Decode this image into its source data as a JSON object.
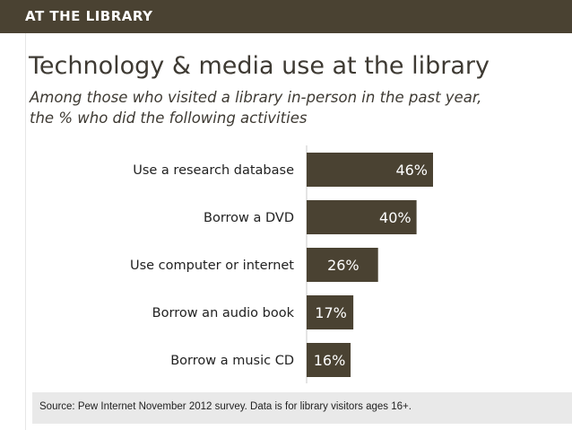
{
  "header": {
    "label": "AT THE LIBRARY"
  },
  "title": "Technology & media use at the library",
  "subtitle": {
    "line1": "Among those who visited a library in-person in the past year,",
    "line2": "the % who did the following activities"
  },
  "chart_data": {
    "type": "bar",
    "orientation": "horizontal",
    "categories": [
      "Use a research database",
      "Borrow a DVD",
      "Use computer or internet",
      "Borrow an audio book",
      "Borrow a music CD"
    ],
    "values": [
      46,
      40,
      26,
      17,
      16
    ],
    "value_labels": [
      "46%",
      "40%",
      "26%",
      "17%",
      "16%"
    ],
    "bar_color": "#4a4232",
    "label_color": "#ffffff",
    "grid": false,
    "legend": "none"
  },
  "footer": {
    "source": "Source: Pew Internet November 2012 survey. Data is for library visitors ages 16+."
  }
}
